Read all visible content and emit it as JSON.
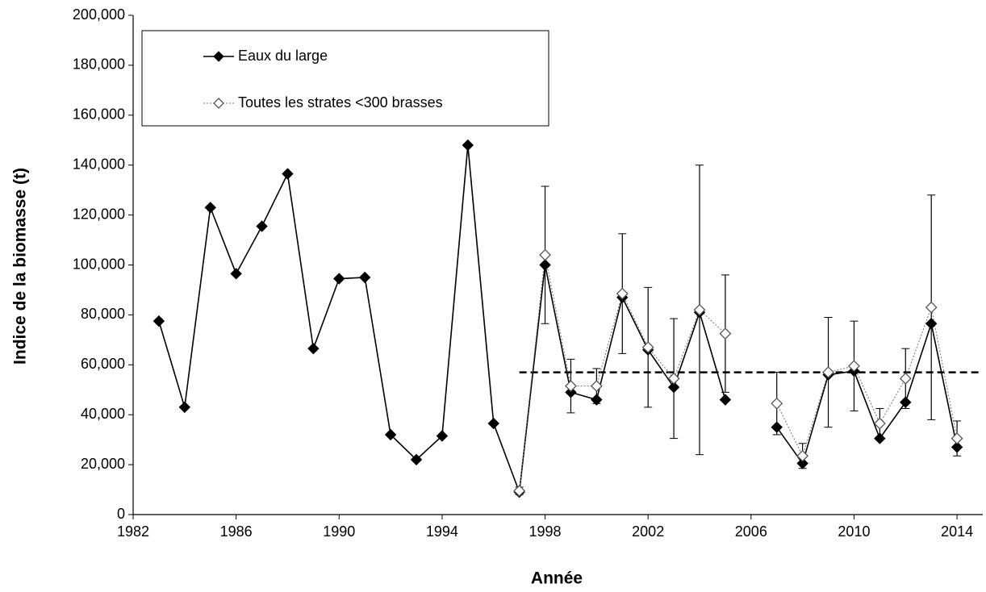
{
  "chart_data": {
    "type": "line",
    "x_label": "Année",
    "y_label": "Indice de la biomasse (t)",
    "x": [
      1983,
      1984,
      1985,
      1986,
      1987,
      1988,
      1989,
      1990,
      1991,
      1992,
      1993,
      1994,
      1995,
      1996,
      1997,
      1998,
      1999,
      2000,
      2001,
      2002,
      2003,
      2004,
      2005,
      2006,
      2007,
      2008,
      2009,
      2010,
      2011,
      2012,
      2013,
      2014
    ],
    "series": [
      {
        "name": "Eaux du large",
        "color": "#000000",
        "marker": "filled-diamond",
        "line_style": "solid",
        "values": [
          77500,
          43000,
          123000,
          96500,
          115500,
          136500,
          66500,
          94500,
          95000,
          32000,
          22000,
          31500,
          148000,
          36500,
          9000,
          100000,
          49000,
          46000,
          87000,
          66000,
          51000,
          81000,
          46000,
          null,
          35000,
          20500,
          56000,
          57500,
          30500,
          45000,
          76500,
          27000
        ]
      },
      {
        "name": "Toutes les strates <300 brasses",
        "color": "#999999",
        "marker": "open-diamond",
        "line_style": "dotted",
        "values": [
          null,
          null,
          null,
          null,
          null,
          null,
          null,
          null,
          null,
          null,
          null,
          null,
          null,
          null,
          9500,
          104000,
          51500,
          51500,
          88500,
          67000,
          54500,
          82000,
          72500,
          null,
          44500,
          23500,
          57000,
          59500,
          36500,
          54500,
          83000,
          30500
        ],
        "errors": [
          null,
          null,
          null,
          null,
          null,
          null,
          null,
          null,
          null,
          null,
          null,
          null,
          null,
          null,
          1500,
          27500,
          10750,
          7000,
          24000,
          24000,
          24000,
          58000,
          23500,
          null,
          12500,
          5000,
          22000,
          18000,
          6000,
          12000,
          45000,
          7000
        ]
      }
    ],
    "reference_line": {
      "value": 57000,
      "from_x": 1997,
      "color": "#000000",
      "line_style": "dashed"
    },
    "xlim": [
      1982,
      2015
    ],
    "xticks": [
      1982,
      1986,
      1990,
      1994,
      1998,
      2002,
      2006,
      2010,
      2014
    ],
    "ylim": [
      0,
      200000
    ],
    "yticks": [
      0,
      {
        "value": 20000,
        "label": "20,000"
      },
      {
        "value": 40000,
        "label": "40,000"
      },
      {
        "value": 60000,
        "label": "60,000"
      },
      {
        "value": 80000,
        "label": "80,000"
      },
      {
        "value": 100000,
        "label": "100,000"
      },
      {
        "value": 120000,
        "label": "120,000"
      },
      {
        "value": 140000,
        "label": "140,000"
      },
      {
        "value": 160000,
        "label": "160,000"
      },
      {
        "value": 180000,
        "label": "180,000"
      },
      {
        "value": 200000,
        "label": "200,000"
      }
    ],
    "grid": false,
    "legend": "top-left"
  }
}
